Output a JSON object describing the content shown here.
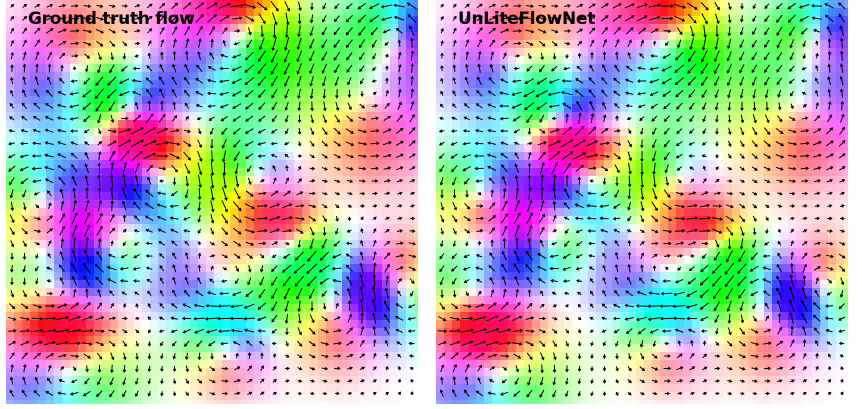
{
  "panels": [
    {
      "label": "Ground truth flow"
    },
    {
      "label": "UnLiteFlowNet"
    }
  ]
}
